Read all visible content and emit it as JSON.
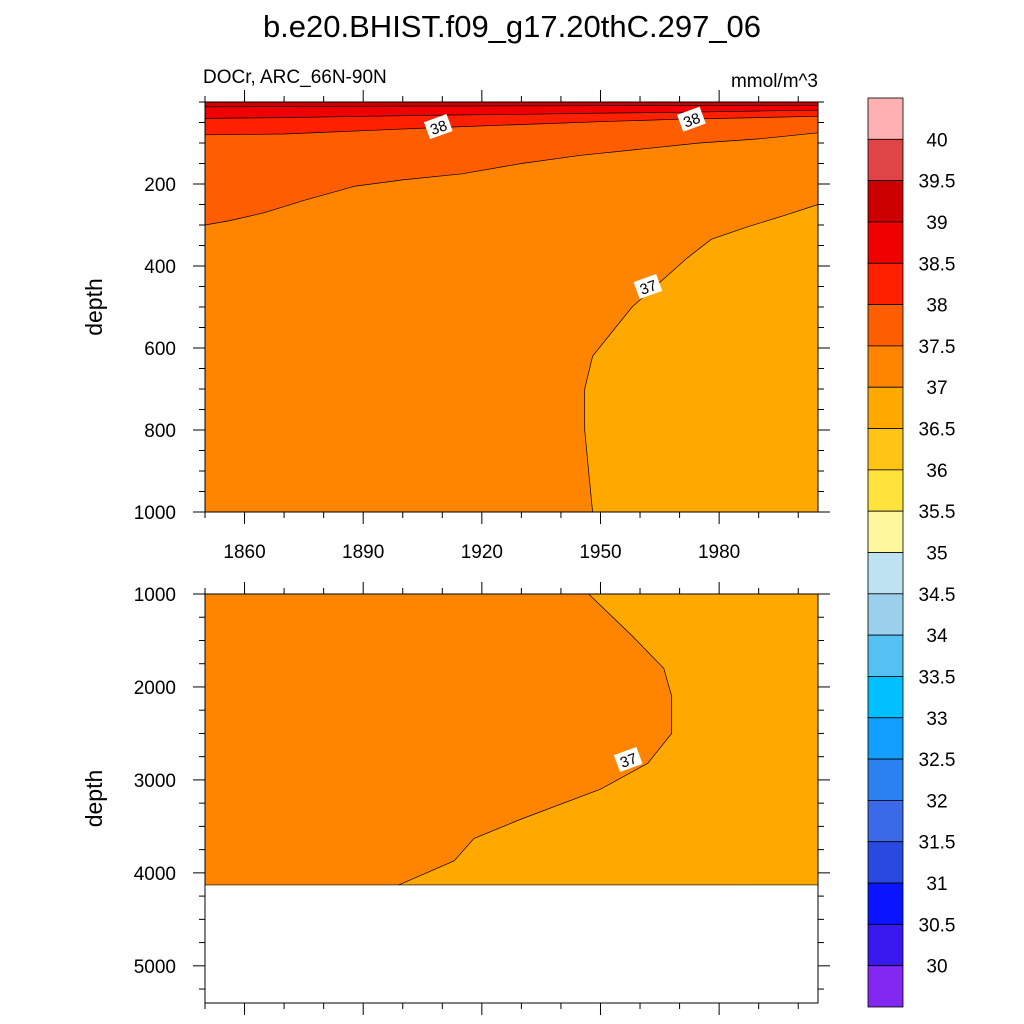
{
  "title": "b.e20.BHIST.f09_g17.20thC.297_06",
  "chart_data": {
    "type": "contour",
    "variable": "DOCr",
    "region": "ARC_66N-90N",
    "units": "mmol/m^3",
    "x_ticks": [
      1860,
      1890,
      1920,
      1950,
      1980
    ],
    "x_range": [
      1850,
      2005
    ],
    "colorbar": {
      "labels": [
        "30",
        "30.5",
        "31",
        "31.5",
        "32",
        "32.5",
        "33",
        "33.5",
        "34",
        "34.5",
        "35",
        "35.5",
        "36",
        "36.5",
        "37",
        "37.5",
        "38",
        "38.5",
        "39",
        "39.5",
        "40"
      ],
      "colors_top_to_bottom": [
        "#ffb0b2",
        "#df4446",
        "#cc0000",
        "#f00000",
        "#ff2000",
        "#ff5e00",
        "#ff8400",
        "#ffa800",
        "#ffc414",
        "#ffe23c",
        "#fff79e",
        "#bfe2f2",
        "#9ad0ec",
        "#55c1f2",
        "#00c0ff",
        "#129fff",
        "#2a82f0",
        "#3a6ae8",
        "#284ae0",
        "#0a14ff",
        "#3a18f0",
        "#8228f0"
      ]
    },
    "upper_panel": {
      "ylabel": "depth",
      "y_ticks": [
        200,
        400,
        600,
        800,
        1000
      ],
      "y_range": [
        0,
        1000
      ],
      "contour_labels": [
        {
          "text": "38",
          "year": 1909,
          "depth": 60
        },
        {
          "text": "38",
          "year": 1973,
          "depth": 42
        },
        {
          "text": "37",
          "year": 1962,
          "depth": 450
        }
      ],
      "contour_37": [
        [
          1948,
          1000
        ],
        [
          1947,
          900
        ],
        [
          1946,
          800
        ],
        [
          1946,
          700
        ],
        [
          1948,
          620
        ],
        [
          1953,
          560
        ],
        [
          1958,
          500
        ],
        [
          1965,
          440
        ],
        [
          1972,
          380
        ],
        [
          1978,
          335
        ],
        [
          1987,
          305
        ],
        [
          1997,
          275
        ],
        [
          2005,
          250
        ]
      ],
      "contour_37_5": [
        [
          1850,
          300
        ],
        [
          1856,
          290
        ],
        [
          1865,
          270
        ],
        [
          1875,
          240
        ],
        [
          1888,
          205
        ],
        [
          1900,
          190
        ],
        [
          1915,
          175
        ],
        [
          1930,
          150
        ],
        [
          1945,
          130
        ],
        [
          1960,
          115
        ],
        [
          1975,
          100
        ],
        [
          1990,
          90
        ],
        [
          2005,
          75
        ]
      ],
      "contour_38": [
        [
          1850,
          80
        ],
        [
          1870,
          78
        ],
        [
          1890,
          70
        ],
        [
          1910,
          62
        ],
        [
          1930,
          55
        ],
        [
          1950,
          48
        ],
        [
          1970,
          42
        ],
        [
          1990,
          38
        ],
        [
          2005,
          35
        ]
      ],
      "contour_38_5": [
        [
          1850,
          40
        ],
        [
          1870,
          38
        ],
        [
          1890,
          35
        ],
        [
          1910,
          32
        ],
        [
          1930,
          30
        ],
        [
          1950,
          27
        ],
        [
          1970,
          25
        ],
        [
          1990,
          22
        ],
        [
          2005,
          20
        ]
      ],
      "contour_39": [
        [
          1850,
          12
        ],
        [
          1900,
          10
        ],
        [
          1950,
          9
        ],
        [
          2005,
          8
        ]
      ]
    },
    "lower_panel": {
      "ylabel": "depth",
      "y_ticks": [
        1000,
        2000,
        3000,
        4000,
        5000
      ],
      "y_range": [
        1000,
        5400
      ],
      "seafloor_depth": 4130,
      "contour_labels": [
        {
          "text": "37",
          "year": 1957,
          "depth": 2780
        }
      ],
      "contour_37": [
        [
          1899,
          4130
        ],
        [
          1913,
          3870
        ],
        [
          1918,
          3630
        ],
        [
          1930,
          3420
        ],
        [
          1950,
          3100
        ],
        [
          1962,
          2820
        ],
        [
          1968,
          2500
        ],
        [
          1968,
          2100
        ],
        [
          1966,
          1800
        ],
        [
          1958,
          1450
        ],
        [
          1947,
          1000
        ]
      ]
    }
  }
}
